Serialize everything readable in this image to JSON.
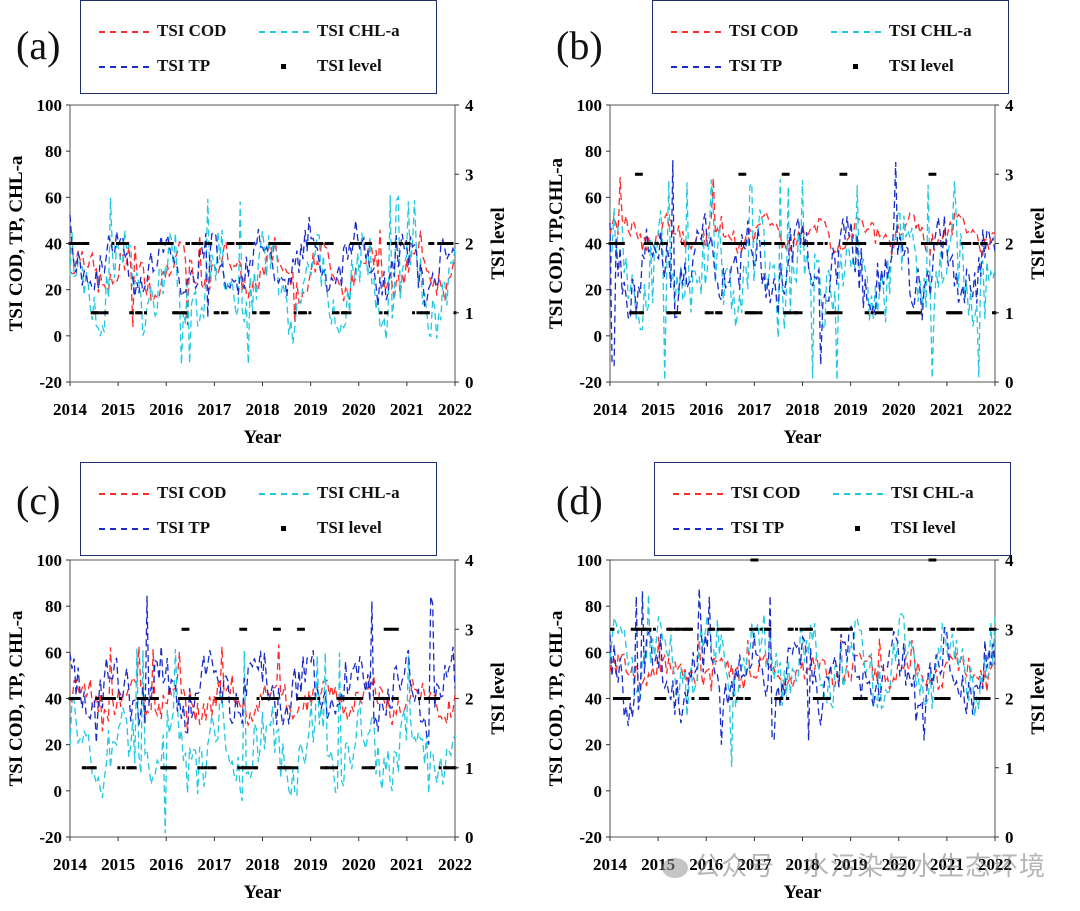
{
  "legend": {
    "cod": "TSI COD",
    "chl": "TSI CHL-a",
    "tp": "TSI TP",
    "level": "TSI level"
  },
  "colors": {
    "cod": "#ff2a2a",
    "chl": "#20c8e0",
    "tp": "#1a2cc8",
    "level": "#000000"
  },
  "watermark": "公众号 · 水污染与水生态环境",
  "chart_data": [
    {
      "type": "line",
      "panel": "(a)",
      "xlabel": "Year",
      "ylabel": "TSI COD, TP, CHL-a",
      "y2label": "TSI level",
      "xlim": [
        2014,
        2022
      ],
      "ylim": [
        -20,
        100
      ],
      "y2lim": [
        0,
        4
      ],
      "xticks": [
        "2014",
        "2015",
        "2016",
        "2017",
        "2018",
        "2019",
        "2020",
        "2021",
        "2022"
      ],
      "yticks": [
        "-20",
        "0",
        "20",
        "40",
        "60",
        "80",
        "100"
      ],
      "y2ticks": [
        "0",
        "1",
        "2",
        "3",
        "4"
      ],
      "series": [
        {
          "name": "TSI COD",
          "key": "cod",
          "base": 28,
          "amp": 8,
          "noise": 6,
          "min": 2,
          "max": 46
        },
        {
          "name": "TSI CHL-a",
          "key": "chl",
          "base": 22,
          "amp": 14,
          "noise": 12,
          "min": -15,
          "max": 61
        },
        {
          "name": "TSI TP",
          "key": "tp",
          "base": 30,
          "amp": 10,
          "noise": 8,
          "min": 5,
          "max": 53
        }
      ],
      "level_values": [
        1,
        2
      ],
      "level_peaks": []
    },
    {
      "type": "line",
      "panel": "(b)",
      "xlabel": "Year",
      "ylabel": "TSI COD, TP,CHL-a",
      "y2label": "TSI level",
      "xlim": [
        2014,
        2022
      ],
      "ylim": [
        -20,
        100
      ],
      "y2lim": [
        0,
        4
      ],
      "xticks": [
        "2014",
        "2015",
        "2016",
        "2017",
        "2018",
        "2019",
        "2020",
        "2021",
        "2022"
      ],
      "yticks": [
        "-20",
        "0",
        "20",
        "40",
        "60",
        "80",
        "100"
      ],
      "y2ticks": [
        "0",
        "1",
        "2",
        "3",
        "4"
      ],
      "series": [
        {
          "name": "TSI COD",
          "key": "cod",
          "base": 44,
          "amp": 5,
          "noise": 5,
          "min": 35,
          "max": 72
        },
        {
          "name": "TSI CHL-a",
          "key": "chl",
          "base": 26,
          "amp": 14,
          "noise": 16,
          "min": -20,
          "max": 68
        },
        {
          "name": "TSI TP",
          "key": "tp",
          "base": 30,
          "amp": 12,
          "noise": 12,
          "min": -15,
          "max": 78
        }
      ],
      "level_values": [
        1,
        2
      ],
      "level_peaks": [
        2014.6,
        2016.75,
        2017.65,
        2018.85,
        2020.7
      ]
    },
    {
      "type": "line",
      "panel": "(c)",
      "xlabel": "Year",
      "ylabel": "TSI COD, TP, CHL-a",
      "y2label": "TSI level",
      "xlim": [
        2014,
        2022
      ],
      "ylim": [
        -20,
        100
      ],
      "y2lim": [
        0,
        4
      ],
      "xticks": [
        "2014",
        "2015",
        "2016",
        "2017",
        "2018",
        "2019",
        "2020",
        "2021",
        "2022"
      ],
      "yticks": [
        "-20",
        "0",
        "20",
        "40",
        "60",
        "80",
        "100"
      ],
      "y2ticks": [
        "0",
        "1",
        "2",
        "3",
        "4"
      ],
      "series": [
        {
          "name": "TSI COD",
          "key": "cod",
          "base": 40,
          "amp": 6,
          "noise": 6,
          "min": 22,
          "max": 64
        },
        {
          "name": "TSI CHL-a",
          "key": "chl",
          "base": 18,
          "amp": 12,
          "noise": 12,
          "min": -20,
          "max": 62
        },
        {
          "name": "TSI TP",
          "key": "tp",
          "base": 44,
          "amp": 10,
          "noise": 10,
          "min": 18,
          "max": 85
        }
      ],
      "level_values": [
        1,
        2
      ],
      "level_peaks": [
        2016.4,
        2017.6,
        2018.3,
        2018.8,
        2020.6,
        2020.75
      ]
    },
    {
      "type": "line",
      "panel": "(d)",
      "xlabel": "Year",
      "ylabel": "TSI COD, TP, CHL-a",
      "y2label": "TSI level",
      "xlim": [
        2014,
        2022
      ],
      "ylim": [
        -20,
        100
      ],
      "y2lim": [
        0,
        4
      ],
      "xticks": [
        "2014",
        "2015",
        "2016",
        "2017",
        "2018",
        "2019",
        "2020",
        "2021",
        "2022"
      ],
      "yticks": [
        "-20",
        "0",
        "20",
        "40",
        "60",
        "80",
        "100"
      ],
      "y2ticks": [
        "0",
        "1",
        "2",
        "3",
        "4"
      ],
      "series": [
        {
          "name": "TSI COD",
          "key": "cod",
          "base": 52,
          "amp": 4,
          "noise": 5,
          "min": 40,
          "max": 68
        },
        {
          "name": "TSI CHL-a",
          "key": "chl",
          "base": 56,
          "amp": 12,
          "noise": 12,
          "min": 10,
          "max": 86
        },
        {
          "name": "TSI TP",
          "key": "tp",
          "base": 50,
          "amp": 12,
          "noise": 11,
          "min": 20,
          "max": 88
        }
      ],
      "level_values": [
        2,
        3
      ],
      "level_peaks": [
        2017.0,
        2020.7
      ]
    }
  ]
}
